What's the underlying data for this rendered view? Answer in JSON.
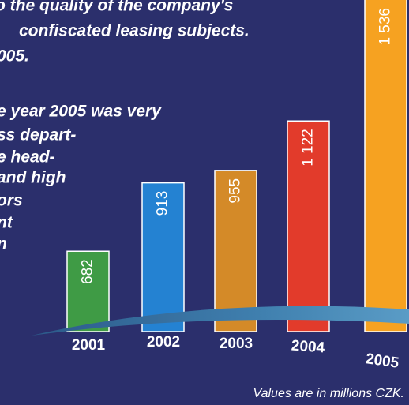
{
  "chart_data": {
    "type": "bar",
    "annotations": [
      "o the quality of the company's",
      "confiscated leasing subjects.",
      "005.",
      "e year 2005 was very",
      "ss depart-",
      "e head-",
      "and high",
      "ors",
      "nt",
      "n"
    ],
    "categories": [
      "2001",
      "2002",
      "2003",
      "2004",
      "2005"
    ],
    "values": [
      682,
      913,
      955,
      1122,
      1536
    ],
    "value_labels": [
      "682",
      "913",
      "955",
      "1 122",
      "1 536"
    ],
    "colors": [
      "#3f9b45",
      "#2482d2",
      "#d48a28",
      "#e23b2b",
      "#f6a221"
    ],
    "note": "Values are in millions CZK."
  }
}
